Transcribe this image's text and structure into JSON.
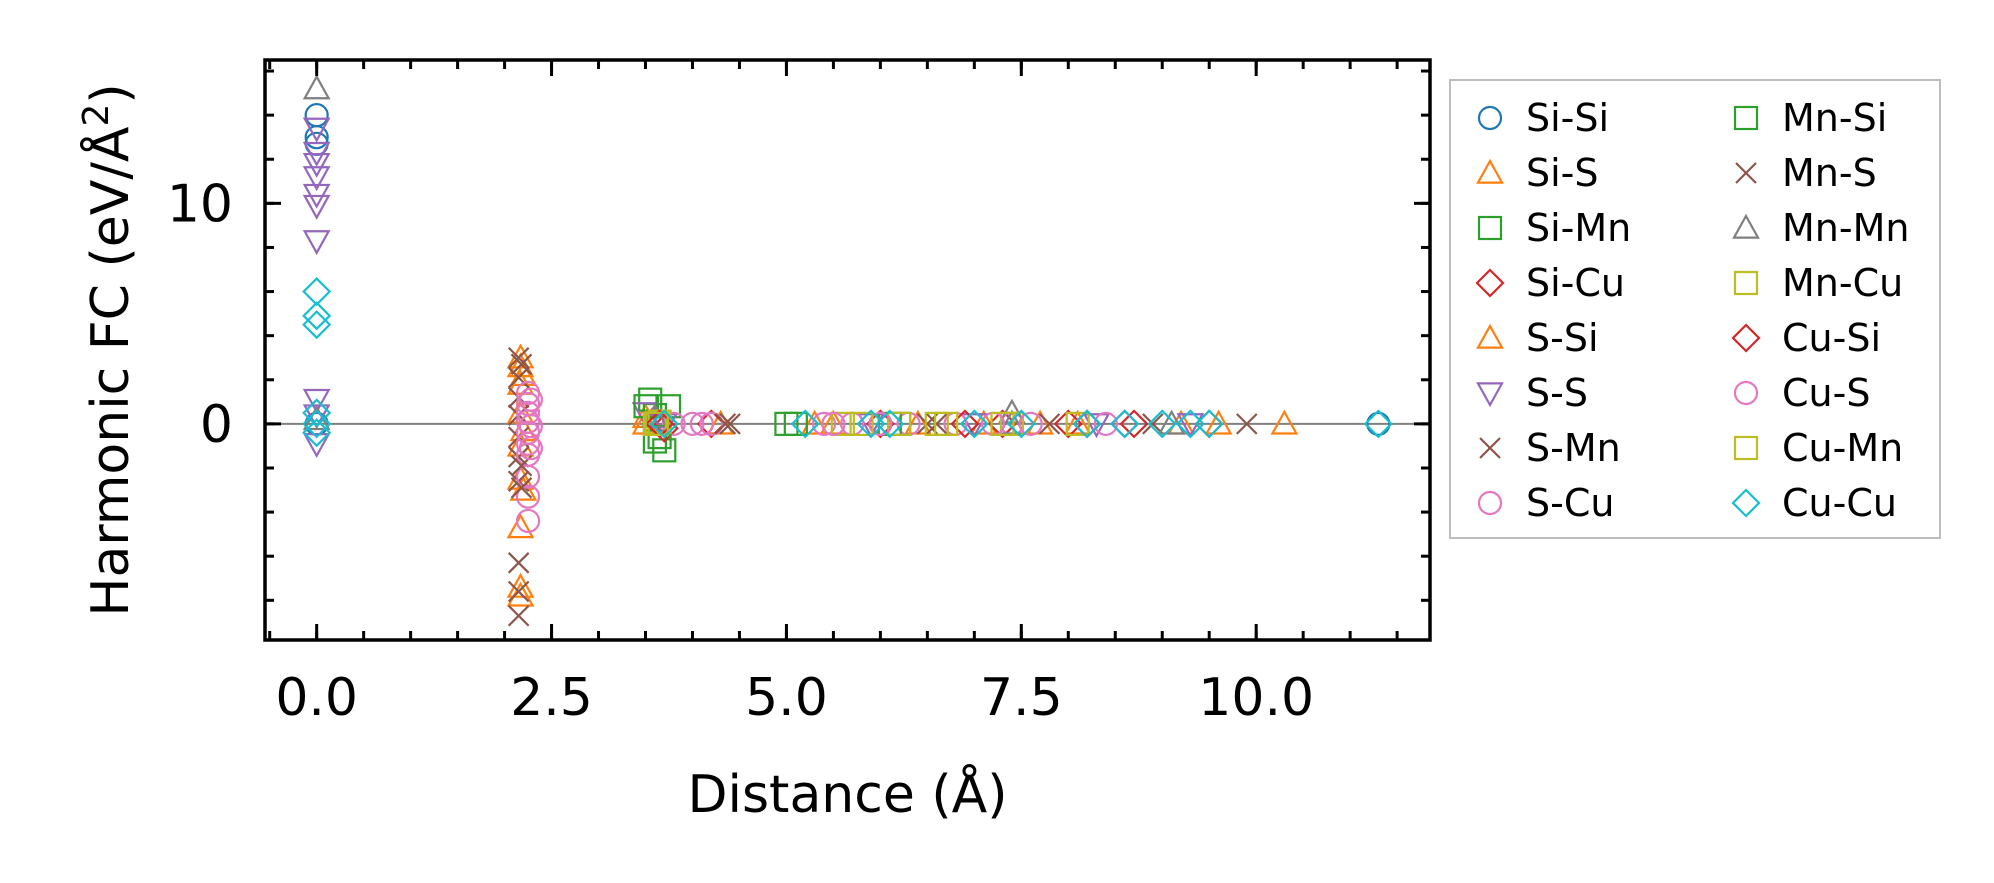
{
  "chart_data": {
    "type": "scatter",
    "title": "",
    "xlabel": "Distance (Å)",
    "ylabel_parts": [
      "Harmonic FC (eV/Å",
      "2",
      ")"
    ],
    "xlim": [
      -0.55,
      11.85
    ],
    "ylim": [
      -9.8,
      16.5
    ],
    "xticks": [
      0.0,
      2.5,
      5.0,
      7.5,
      10.0
    ],
    "xtick_labels": [
      "0.0",
      "2.5",
      "5.0",
      "7.5",
      "10.0"
    ],
    "yticks": [
      0,
      10
    ],
    "ytick_labels": [
      "0",
      "10"
    ],
    "x_minor_step": 0.5,
    "y_minor_step": 2,
    "zero_line": true,
    "legend_position": "outside-right",
    "legend_columns": 2,
    "series": [
      {
        "name": "Si-Si",
        "marker": "circle",
        "color": "#1f77b4",
        "points": [
          [
            0,
            14
          ],
          [
            0,
            13
          ],
          [
            0,
            12.7
          ],
          [
            0,
            0
          ],
          [
            11.3,
            0
          ]
        ]
      },
      {
        "name": "Si-S",
        "marker": "triangle-up",
        "color": "#ff7f0e",
        "points": [
          [
            2.17,
            3.0
          ],
          [
            2.17,
            2.6
          ],
          [
            2.17,
            1.8
          ],
          [
            2.17,
            0.5
          ],
          [
            2.17,
            -1.0
          ],
          [
            2.17,
            -2.5
          ],
          [
            2.17,
            -4.7
          ],
          [
            2.17,
            -7.4
          ],
          [
            2.17,
            -7.8
          ],
          [
            3.5,
            0.3
          ],
          [
            4.3,
            0
          ],
          [
            5.5,
            0
          ],
          [
            6.4,
            0
          ],
          [
            7.1,
            0
          ],
          [
            8.1,
            0
          ],
          [
            9.2,
            0
          ],
          [
            10.3,
            0
          ]
        ]
      },
      {
        "name": "Si-Mn",
        "marker": "square",
        "color": "#2ca02c",
        "points": [
          [
            3.55,
            1.1
          ],
          [
            3.6,
            0.4
          ],
          [
            3.6,
            -0.8
          ],
          [
            3.7,
            -1.2
          ],
          [
            3.75,
            0.8
          ],
          [
            5.0,
            0
          ],
          [
            6.2,
            0
          ]
        ]
      },
      {
        "name": "Si-Cu",
        "marker": "diamond",
        "color": "#d62728",
        "points": [
          [
            3.6,
            0.2
          ],
          [
            3.7,
            -0.2
          ],
          [
            4.2,
            0
          ],
          [
            6.0,
            0
          ],
          [
            7.3,
            0
          ],
          [
            8.0,
            0
          ],
          [
            8.6,
            0
          ]
        ]
      },
      {
        "name": "S-Si",
        "marker": "triangle-up",
        "color": "#ff7f0e",
        "points": [
          [
            2.2,
            2.2
          ],
          [
            2.2,
            -0.3
          ],
          [
            2.2,
            -3.0
          ],
          [
            3.5,
            0
          ],
          [
            5.3,
            0
          ],
          [
            7.7,
            0
          ],
          [
            9.6,
            0
          ]
        ]
      },
      {
        "name": "S-S",
        "marker": "triangle-down",
        "color": "#9467bd",
        "points": [
          [
            0,
            13.4
          ],
          [
            0,
            12.3
          ],
          [
            0,
            11.8
          ],
          [
            0,
            11.2
          ],
          [
            0,
            10.4
          ],
          [
            0,
            9.9
          ],
          [
            0,
            8.3
          ],
          [
            0,
            1.1
          ],
          [
            0,
            0.4
          ],
          [
            0,
            -0.9
          ],
          [
            3.5,
            0.5
          ],
          [
            3.7,
            0
          ],
          [
            5.9,
            0
          ],
          [
            7.0,
            0
          ],
          [
            8.3,
            0
          ],
          [
            9.3,
            0
          ]
        ]
      },
      {
        "name": "S-Mn",
        "marker": "x",
        "color": "#8c564b",
        "points": [
          [
            2.15,
            3.0
          ],
          [
            2.15,
            2.1
          ],
          [
            2.15,
            1.2
          ],
          [
            2.15,
            0.4
          ],
          [
            2.15,
            -0.6
          ],
          [
            2.15,
            -1.5
          ],
          [
            2.15,
            -2.6
          ],
          [
            2.15,
            -6.3
          ],
          [
            2.15,
            -7.6
          ],
          [
            2.15,
            -8.7
          ],
          [
            4.4,
            0
          ],
          [
            6.6,
            0
          ],
          [
            7.8,
            0
          ],
          [
            9.9,
            0
          ]
        ]
      },
      {
        "name": "S-Cu",
        "marker": "circle",
        "color": "#e377c2",
        "points": [
          [
            2.25,
            1.4
          ],
          [
            2.25,
            0.9
          ],
          [
            2.25,
            0.5
          ],
          [
            2.25,
            0.1
          ],
          [
            2.25,
            -0.4
          ],
          [
            2.25,
            -0.9
          ],
          [
            2.25,
            -1.4
          ],
          [
            2.25,
            -2.4
          ],
          [
            2.25,
            -3.3
          ],
          [
            2.25,
            -4.4
          ],
          [
            3.8,
            0
          ],
          [
            4.0,
            0
          ],
          [
            4.2,
            0
          ],
          [
            5.4,
            0
          ],
          [
            5.7,
            0
          ],
          [
            6.3,
            0
          ],
          [
            6.8,
            0
          ],
          [
            7.4,
            0
          ],
          [
            8.4,
            0
          ]
        ]
      },
      {
        "name": "Mn-Si",
        "marker": "square",
        "color": "#2ca02c",
        "points": [
          [
            3.5,
            0.8
          ],
          [
            3.65,
            -0.6
          ],
          [
            5.1,
            0
          ],
          [
            6.1,
            0
          ]
        ]
      },
      {
        "name": "Mn-S",
        "marker": "x",
        "color": "#8c564b",
        "points": [
          [
            2.18,
            2.7
          ],
          [
            2.18,
            -1.9
          ],
          [
            2.18,
            -2.9
          ],
          [
            4.35,
            0
          ],
          [
            6.5,
            0
          ],
          [
            8.9,
            0
          ]
        ]
      },
      {
        "name": "Mn-Mn",
        "marker": "triangle-up",
        "color": "#7f7f7f",
        "points": [
          [
            0,
            15.2
          ],
          [
            0,
            0.2
          ],
          [
            3.6,
            0.3
          ],
          [
            7.4,
            0.5
          ],
          [
            7.4,
            0
          ],
          [
            9.1,
            0
          ]
        ]
      },
      {
        "name": "Mn-Cu",
        "marker": "square",
        "color": "#bcbd22",
        "points": [
          [
            3.6,
            0
          ],
          [
            3.65,
            0.1
          ],
          [
            5.6,
            0
          ],
          [
            6.2,
            0
          ],
          [
            6.6,
            0
          ],
          [
            7.4,
            0
          ],
          [
            8.1,
            0
          ]
        ]
      },
      {
        "name": "Cu-Si",
        "marker": "diamond",
        "color": "#d62728",
        "points": [
          [
            3.65,
            0
          ],
          [
            6.9,
            0
          ],
          [
            8.2,
            0
          ],
          [
            8.7,
            0
          ],
          [
            9.5,
            0
          ]
        ]
      },
      {
        "name": "Cu-S",
        "marker": "circle",
        "color": "#e377c2",
        "points": [
          [
            2.28,
            1.1
          ],
          [
            2.28,
            -0.1
          ],
          [
            2.28,
            -1.1
          ],
          [
            4.1,
            0
          ],
          [
            5.5,
            0
          ],
          [
            6.0,
            0
          ],
          [
            7.2,
            0
          ],
          [
            7.6,
            0
          ]
        ]
      },
      {
        "name": "Cu-Mn",
        "marker": "square",
        "color": "#bcbd22",
        "points": [
          [
            3.62,
            0
          ],
          [
            5.8,
            0
          ],
          [
            6.7,
            0
          ],
          [
            7.3,
            0
          ]
        ]
      },
      {
        "name": "Cu-Cu",
        "marker": "diamond",
        "color": "#17becf",
        "points": [
          [
            0,
            6.0
          ],
          [
            0,
            4.9
          ],
          [
            0,
            4.5
          ],
          [
            0,
            0.5
          ],
          [
            0,
            0
          ],
          [
            0,
            -0.4
          ],
          [
            3.7,
            0
          ],
          [
            5.2,
            0
          ],
          [
            5.9,
            0
          ],
          [
            6.1,
            0
          ],
          [
            7.0,
            0
          ],
          [
            7.5,
            0
          ],
          [
            8.2,
            0
          ],
          [
            8.6,
            0
          ],
          [
            9.0,
            0
          ],
          [
            9.3,
            0
          ],
          [
            9.5,
            0
          ],
          [
            11.3,
            0
          ]
        ]
      }
    ]
  }
}
